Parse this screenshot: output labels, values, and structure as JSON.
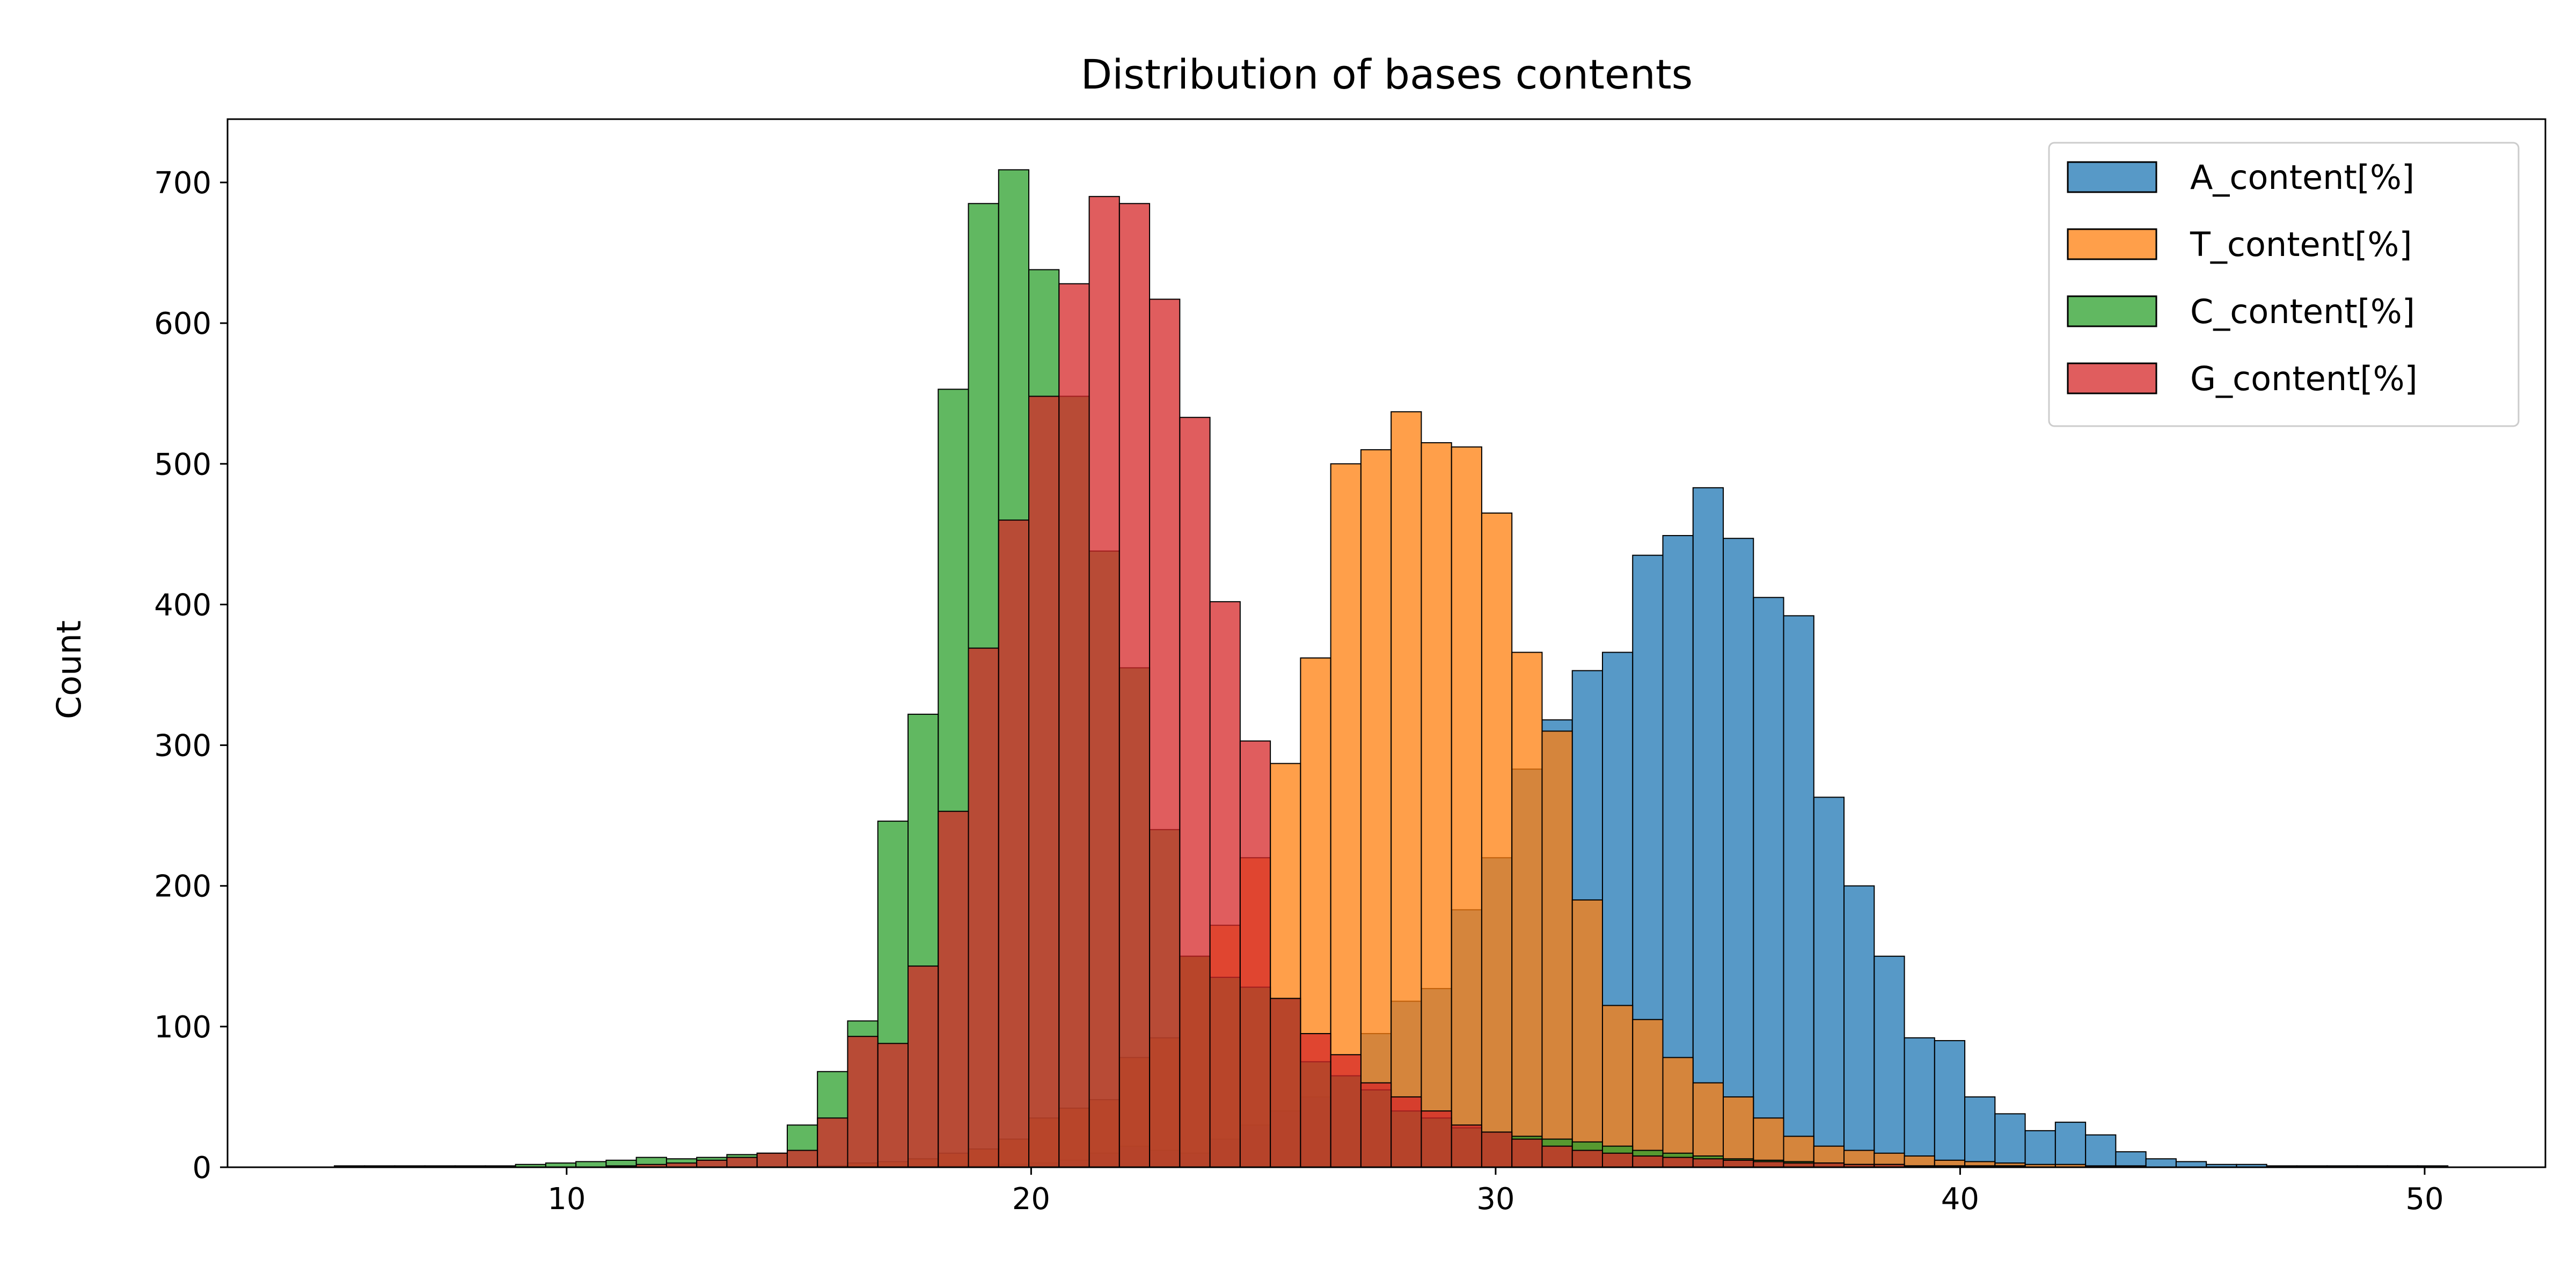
{
  "chart_data": {
    "type": "bar",
    "subtype": "histogram",
    "title": "Distribution of bases contents",
    "xlabel": "",
    "ylabel": "Count",
    "xlim": [
      2.7,
      52.6
    ],
    "ylim": [
      0,
      745
    ],
    "xticks": [
      10,
      20,
      30,
      40,
      50
    ],
    "yticks": [
      0,
      100,
      200,
      300,
      400,
      500,
      600,
      700
    ],
    "grid": false,
    "legend_position": "top-right",
    "bin_start": 5.0,
    "bin_width": 0.65,
    "series": [
      {
        "name": "A_content[%]",
        "color": "#1f77b4",
        "values": [
          0,
          0,
          0,
          0,
          0,
          0,
          0,
          0,
          0,
          0,
          0,
          0,
          0,
          0,
          0,
          0,
          0,
          0,
          0,
          0,
          1,
          1,
          2,
          3,
          5,
          10,
          15,
          12,
          10,
          20,
          30,
          40,
          50,
          65,
          95,
          118,
          127,
          183,
          220,
          283,
          318,
          353,
          366,
          435,
          449,
          483,
          447,
          405,
          392,
          263,
          200,
          150,
          92,
          90,
          50,
          38,
          26,
          32,
          23,
          11,
          6,
          4,
          2,
          2,
          1,
          1,
          1,
          1,
          1,
          1
        ]
      },
      {
        "name": "T_content[%]",
        "color": "#ff7f0e",
        "values": [
          0,
          0,
          0,
          0,
          0,
          0,
          0,
          0,
          0,
          0,
          0,
          0,
          0,
          0,
          0,
          0,
          1,
          3,
          4,
          6,
          10,
          13,
          20,
          35,
          42,
          48,
          78,
          92,
          150,
          172,
          220,
          287,
          362,
          500,
          510,
          537,
          515,
          512,
          465,
          366,
          310,
          190,
          115,
          105,
          78,
          60,
          50,
          35,
          22,
          15,
          12,
          10,
          8,
          5,
          4,
          3,
          2,
          2,
          1,
          1,
          0,
          0,
          0,
          0,
          0,
          0,
          0,
          0,
          0,
          0
        ]
      },
      {
        "name": "C_content[%]",
        "color": "#2ca02c",
        "values": [
          1,
          1,
          1,
          1,
          1,
          1,
          2,
          3,
          4,
          5,
          7,
          6,
          7,
          9,
          10,
          30,
          68,
          104,
          246,
          322,
          553,
          685,
          709,
          638,
          548,
          438,
          355,
          240,
          150,
          135,
          128,
          120,
          75,
          65,
          55,
          40,
          35,
          28,
          25,
          22,
          20,
          18,
          15,
          12,
          10,
          8,
          6,
          5,
          4,
          3,
          2,
          2,
          1,
          1,
          1,
          1,
          0,
          0,
          0,
          0,
          0,
          0,
          0,
          0,
          0,
          0,
          0,
          0,
          0,
          0
        ]
      },
      {
        "name": "G_content[%]",
        "color": "#d62728",
        "values": [
          0,
          0,
          0,
          0,
          0,
          0,
          0,
          0,
          0,
          1,
          2,
          3,
          5,
          7,
          10,
          12,
          35,
          93,
          88,
          143,
          253,
          369,
          460,
          548,
          628,
          690,
          685,
          617,
          533,
          402,
          303,
          120,
          95,
          80,
          60,
          50,
          40,
          30,
          25,
          20,
          15,
          12,
          10,
          8,
          7,
          6,
          5,
          4,
          3,
          3,
          2,
          2,
          1,
          1,
          1,
          1,
          0,
          0,
          0,
          0,
          0,
          0,
          0,
          0,
          0,
          0,
          0,
          0,
          0,
          0
        ]
      }
    ]
  }
}
